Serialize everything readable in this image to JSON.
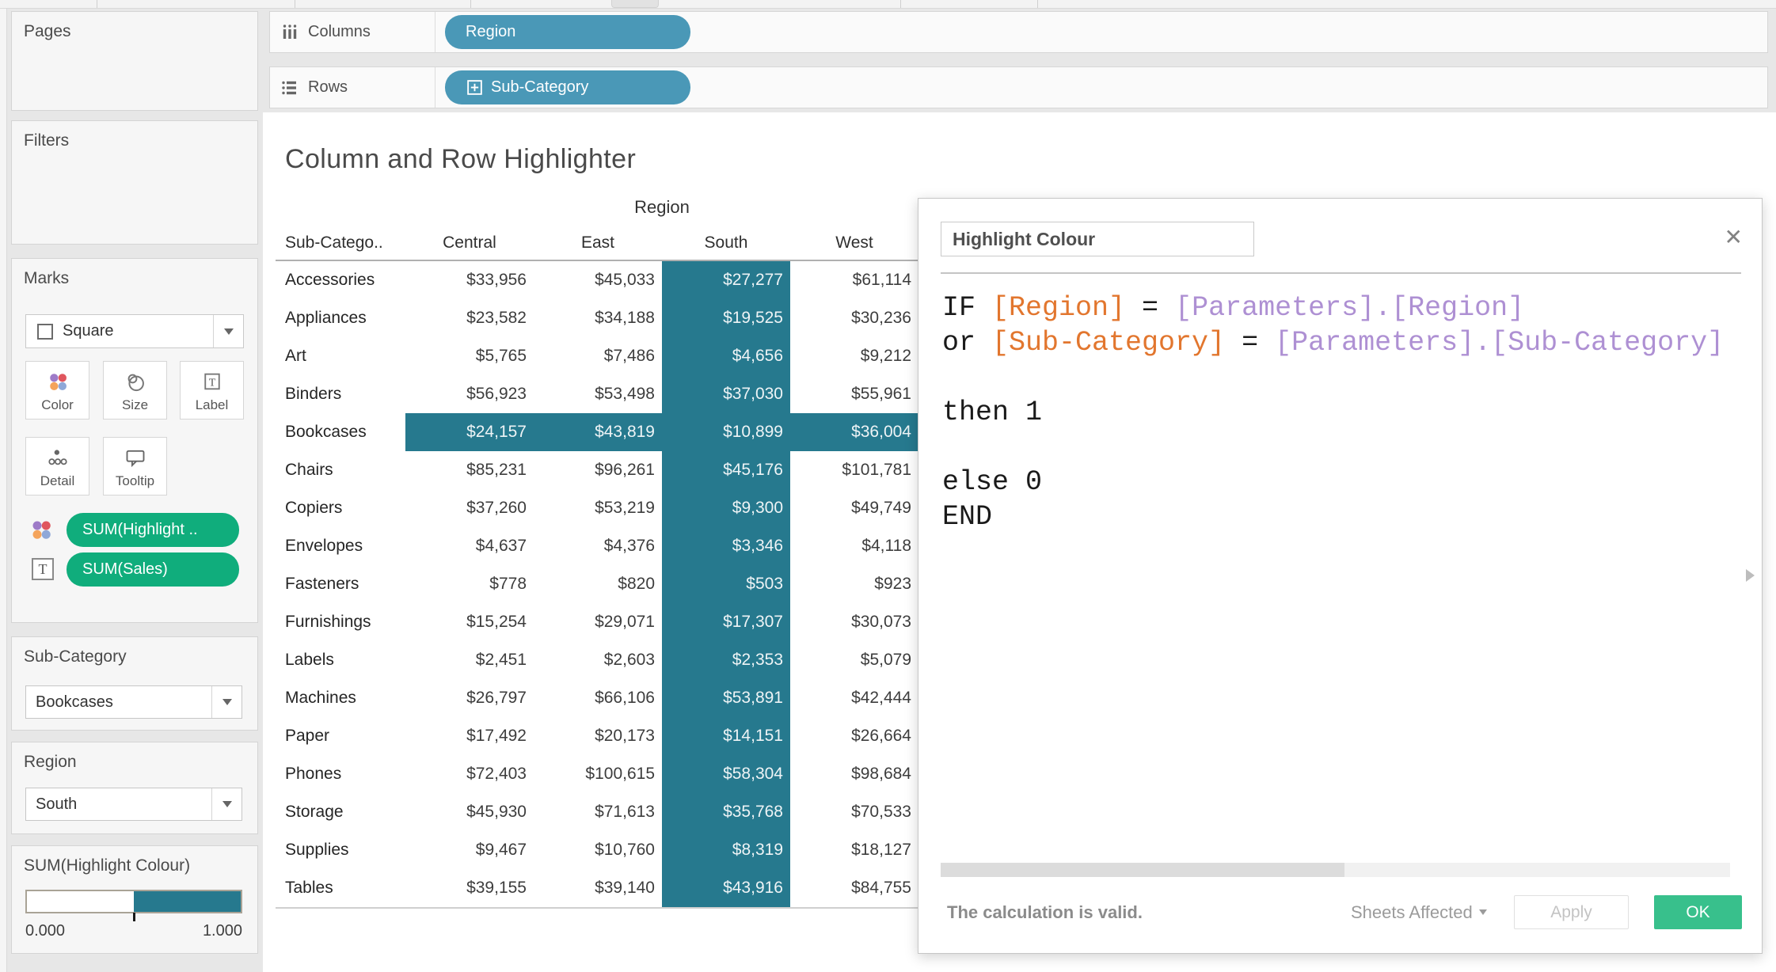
{
  "colors": {
    "highlight_teal": "#26798e",
    "pill_blue": "#4a98b7",
    "pill_green": "#10ad7c",
    "ok_green": "#38c08c",
    "formula_field_orange": "#e2762e",
    "formula_param_purple": "#ae90d3"
  },
  "shelves": {
    "columns": {
      "label": "Columns",
      "pill": "Region"
    },
    "rows": {
      "label": "Rows",
      "pill": "Sub-Category"
    }
  },
  "sidebar": {
    "pages_label": "Pages",
    "filters_label": "Filters",
    "marks": {
      "label": "Marks",
      "mark_type": "Square",
      "buttons": [
        "Color",
        "Size",
        "Label",
        "Detail",
        "Tooltip"
      ],
      "pills": [
        "SUM(Highlight ..",
        "SUM(Sales)"
      ]
    },
    "subcategory_param": {
      "label": "Sub-Category",
      "value": "Bookcases"
    },
    "region_param": {
      "label": "Region",
      "value": "South"
    },
    "legend": {
      "title": "SUM(Highlight Colour)",
      "min": "0.000",
      "max": "1.000"
    }
  },
  "sheet": {
    "title": "Column and Row Highlighter",
    "region_span_label": "Region",
    "row_header": "Sub-Catego.."
  },
  "chart_data": {
    "type": "heatmap",
    "title": "Column and Row Highlighter",
    "row_dimension": "Sub-Category",
    "column_dimension": "Region",
    "columns": [
      "Central",
      "East",
      "South",
      "West"
    ],
    "rows": [
      "Accessories",
      "Appliances",
      "Art",
      "Binders",
      "Bookcases",
      "Chairs",
      "Copiers",
      "Envelopes",
      "Fasteners",
      "Furnishings",
      "Labels",
      "Machines",
      "Paper",
      "Phones",
      "Storage",
      "Supplies",
      "Tables"
    ],
    "values": [
      [
        33956,
        45033,
        27277,
        61114
      ],
      [
        23582,
        34188,
        19525,
        30236
      ],
      [
        5765,
        7486,
        4656,
        9212
      ],
      [
        56923,
        53498,
        37030,
        55961
      ],
      [
        24157,
        43819,
        10899,
        36004
      ],
      [
        85231,
        96261,
        45176,
        101781
      ],
      [
        37260,
        53219,
        9300,
        49749
      ],
      [
        4637,
        4376,
        3346,
        4118
      ],
      [
        778,
        820,
        503,
        923
      ],
      [
        15254,
        29071,
        17307,
        30073
      ],
      [
        2451,
        2603,
        2353,
        5079
      ],
      [
        26797,
        66106,
        53891,
        42444
      ],
      [
        17492,
        20173,
        14151,
        26664
      ],
      [
        72403,
        100615,
        58304,
        98684
      ],
      [
        45930,
        71613,
        35768,
        70533
      ],
      [
        9467,
        10760,
        8319,
        18127
      ],
      [
        39155,
        39140,
        43916,
        84755
      ]
    ],
    "value_prefix": "$",
    "highlighted_row": "Bookcases",
    "highlighted_column": "South",
    "highlight_color": "#26798e",
    "legend_range": [
      0.0,
      1.0
    ]
  },
  "dialog": {
    "name_value": "Highlight Colour",
    "close_glyph": "✕",
    "formula": [
      [
        {
          "t": "IF ",
          "c": "k"
        },
        {
          "t": "[Region]",
          "c": "o"
        },
        {
          "t": " = ",
          "c": "k"
        },
        {
          "t": "[Parameters].[Region]",
          "c": "p"
        }
      ],
      [
        {
          "t": "or ",
          "c": "k"
        },
        {
          "t": "[Sub-Category]",
          "c": "o"
        },
        {
          "t": " = ",
          "c": "k"
        },
        {
          "t": "[Parameters].[Sub-Category]",
          "c": "p"
        }
      ],
      [],
      [
        {
          "t": "then 1",
          "c": "k"
        }
      ],
      [],
      [
        {
          "t": "else 0",
          "c": "k"
        }
      ],
      [
        {
          "t": "END",
          "c": "k"
        }
      ]
    ],
    "status": "The calculation is valid.",
    "sheets_affected_label": "Sheets Affected",
    "apply_label": "Apply",
    "ok_label": "OK"
  }
}
